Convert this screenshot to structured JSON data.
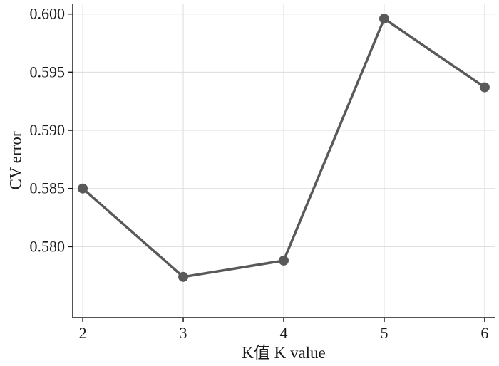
{
  "chart_data": {
    "type": "line",
    "xlabel": "K值 K value",
    "ylabel": "CV error",
    "x": [
      2,
      3,
      4,
      5,
      6
    ],
    "series": [
      {
        "values": [
          0.585,
          0.5774,
          0.5788,
          0.5996,
          0.5937
        ]
      }
    ],
    "xticks": [
      2,
      3,
      4,
      5,
      6
    ],
    "yticks": [
      0.58,
      0.585,
      0.59,
      0.595,
      0.6
    ],
    "ytick_labels": [
      "0.580",
      "0.585",
      "0.590",
      "0.595",
      "0.600"
    ],
    "xlim": [
      1.9,
      6.1
    ],
    "ylim": [
      0.5739,
      0.6009
    ],
    "grid": true,
    "colors": {
      "series": "#595959",
      "axis": "#1a1a1a",
      "grid": "#dcdcdc"
    }
  }
}
